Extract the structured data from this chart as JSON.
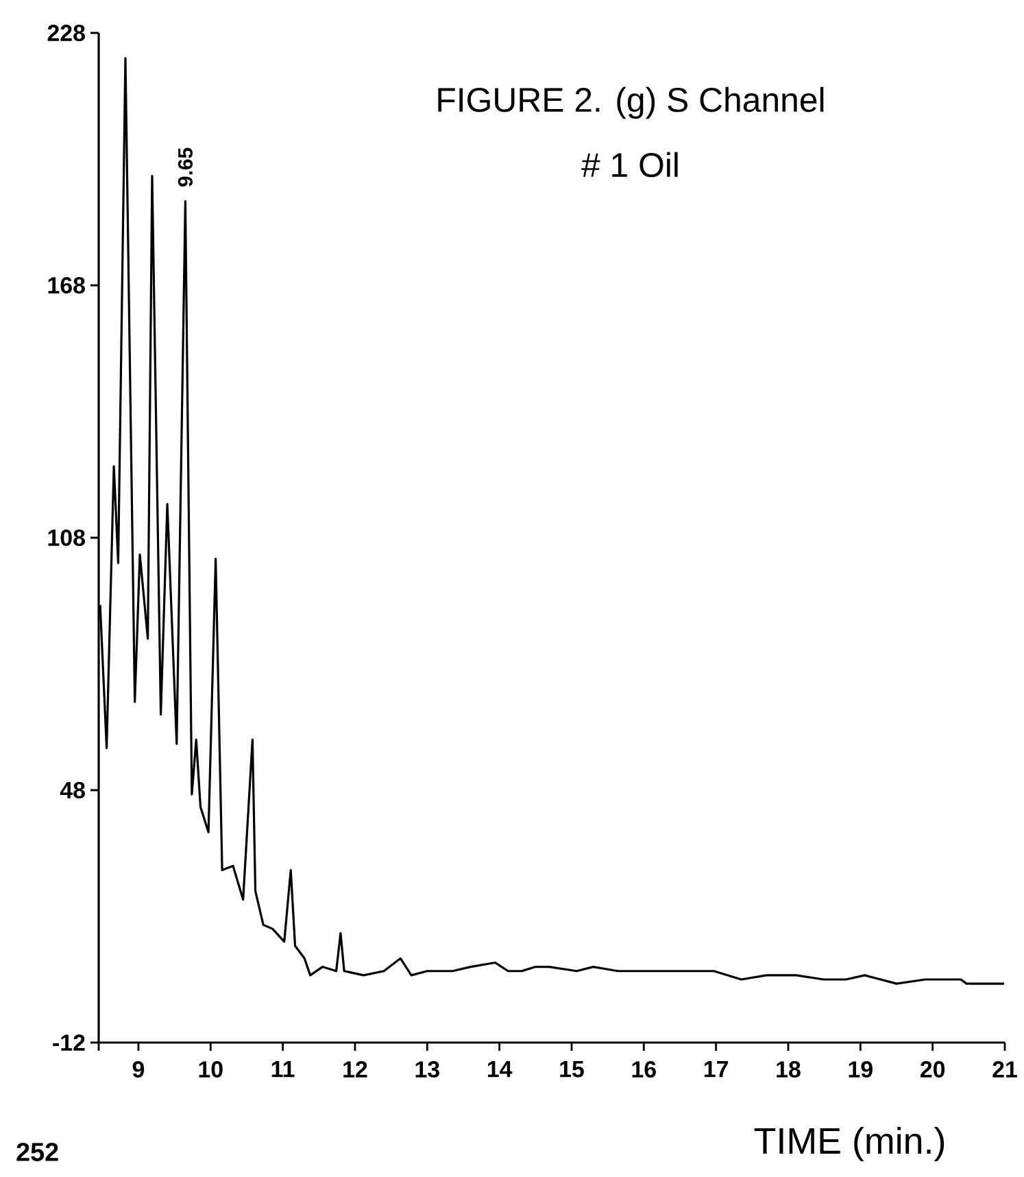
{
  "chart_data": {
    "type": "line",
    "title": "FIGURE 2. (g) S Channel",
    "subtitle": "# 1 Oil",
    "xlabel": "TIME (min.)",
    "xlim": [
      8.45,
      21
    ],
    "ylim": [
      -12,
      228
    ],
    "xticks": [
      {
        "value": 8.45,
        "label": null
      },
      9,
      10,
      11,
      12,
      13,
      14,
      15,
      16,
      17,
      18,
      19,
      20,
      21
    ],
    "yticks": [
      -12,
      48,
      108,
      168,
      228
    ],
    "x": [
      8.47,
      8.56,
      8.66,
      8.72,
      8.82,
      8.95,
      9.02,
      9.13,
      9.19,
      9.31,
      9.4,
      9.53,
      9.65,
      9.74,
      9.8,
      9.86,
      9.97,
      10.07,
      10.16,
      10.31,
      10.45,
      10.58,
      10.62,
      10.73,
      10.86,
      11.02,
      11.11,
      11.17,
      11.3,
      11.38,
      11.55,
      11.74,
      11.8,
      11.85,
      12.12,
      12.4,
      12.63,
      12.78,
      13.0,
      13.35,
      13.6,
      13.94,
      14.12,
      14.31,
      14.5,
      14.69,
      15.07,
      15.3,
      15.64,
      15.9,
      16.21,
      16.6,
      16.97,
      17.35,
      17.7,
      18.11,
      18.49,
      18.8,
      19.06,
      19.5,
      19.9,
      20.39,
      20.47,
      20.99
    ],
    "values": [
      92,
      58,
      125,
      102,
      222,
      69,
      104,
      84,
      194,
      66,
      116,
      59,
      188,
      47,
      60,
      44,
      38,
      103,
      29,
      30,
      22,
      60,
      24,
      16,
      15,
      12,
      29,
      11,
      8,
      4,
      6,
      5,
      14,
      5,
      4,
      5,
      8,
      4,
      5,
      5,
      6,
      7,
      5,
      5,
      6,
      6,
      5,
      6,
      5,
      5,
      5,
      5,
      5,
      3,
      4,
      4,
      3,
      3,
      4,
      2,
      3,
      3,
      2,
      2
    ],
    "annotations": [
      {
        "text": "9.65",
        "x": 9.65,
        "y": 188
      },
      "252"
    ]
  }
}
